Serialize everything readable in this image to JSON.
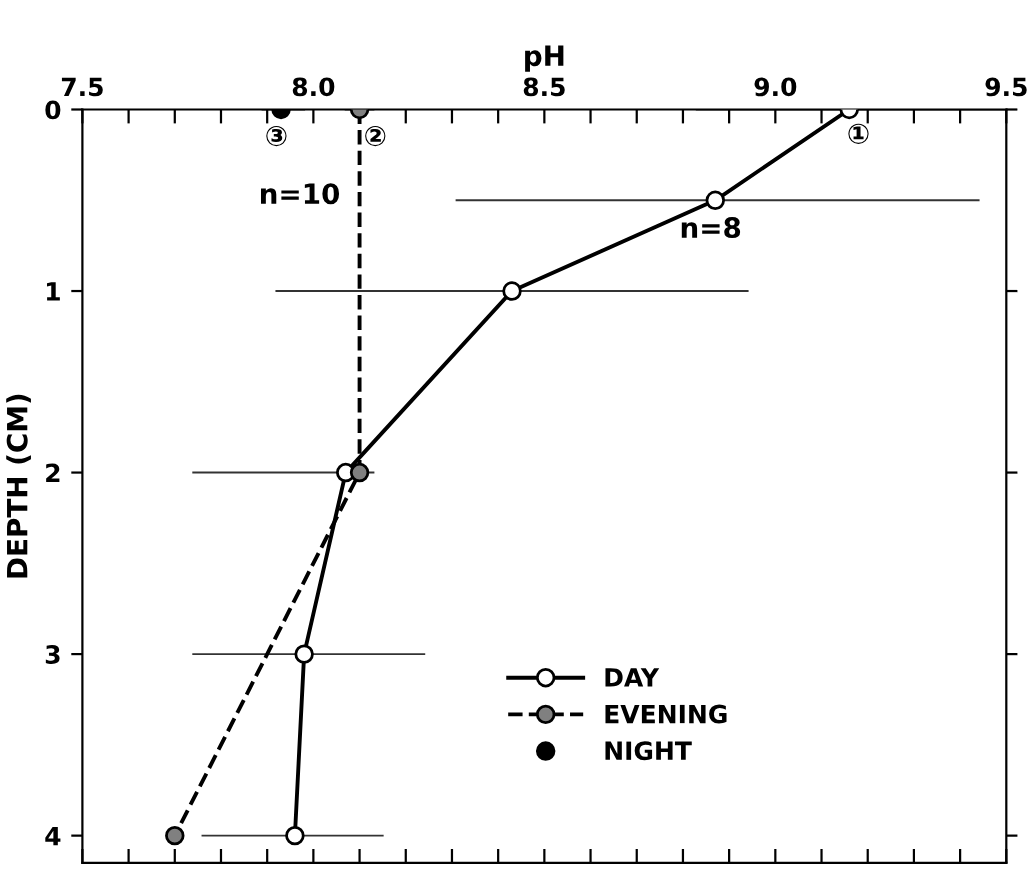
{
  "chart_data": {
    "type": "line",
    "xlabel": "pH",
    "ylabel": "DEPTH (CM)",
    "xlim": [
      7.5,
      9.5
    ],
    "ylim": [
      4.15,
      0
    ],
    "xticks": [
      7.5,
      {
        "value": 7.6,
        "label": null
      },
      {
        "value": 7.7,
        "label": null
      },
      {
        "value": 7.8,
        "label": null
      },
      {
        "value": 7.9,
        "label": null
      },
      {
        "value": 8.0,
        "label": "8.0"
      },
      {
        "value": 8.1,
        "label": null
      },
      {
        "value": 8.2,
        "label": null
      },
      {
        "value": 8.3,
        "label": null
      },
      {
        "value": 8.4,
        "label": null
      },
      8.5,
      {
        "value": 8.6,
        "label": null
      },
      {
        "value": 8.7,
        "label": null
      },
      {
        "value": 8.8,
        "label": null
      },
      {
        "value": 8.9,
        "label": null
      },
      {
        "value": 9.0,
        "label": "9.0"
      },
      {
        "value": 9.1,
        "label": null
      },
      {
        "value": 9.2,
        "label": null
      },
      {
        "value": 9.3,
        "label": null
      },
      {
        "value": 9.4,
        "label": null
      },
      9.5
    ],
    "yticks": [
      0,
      1,
      2,
      3,
      4
    ],
    "grid": false,
    "legend": "bottom",
    "marker": "circle",
    "series": [
      {
        "name": "DAY",
        "color": "#000000",
        "line_style": "solid",
        "x": [
          9.16,
          8.87,
          8.43,
          8.07,
          7.98,
          7.96
        ],
        "values": [
          0,
          0.5,
          1,
          2,
          3,
          4
        ],
        "xerrors": [
          [
            8.83,
            9.5
          ],
          [
            8.31,
            9.44
          ],
          [
            7.92,
            8.94
          ],
          [
            7.74,
            8.13
          ],
          [
            7.74,
            8.24
          ],
          [
            7.76,
            8.15
          ]
        ]
      },
      {
        "name": "EVENING",
        "color": "#000000",
        "line_style": "dashed",
        "x": [
          8.1,
          8.1,
          7.7
        ],
        "values": [
          0,
          2,
          4
        ],
        "xerrors": [
          [
            8.07,
            8.13
          ],
          null,
          null
        ]
      },
      {
        "name": "NIGHT",
        "color": "#000000",
        "line_style": "none",
        "x": [
          7.93
        ],
        "values": [
          0
        ],
        "xerrors": [
          [
            7.89,
            7.98
          ]
        ]
      }
    ],
    "annotations": [
      "①",
      "②",
      "③",
      "n=10",
      "n=8"
    ]
  }
}
